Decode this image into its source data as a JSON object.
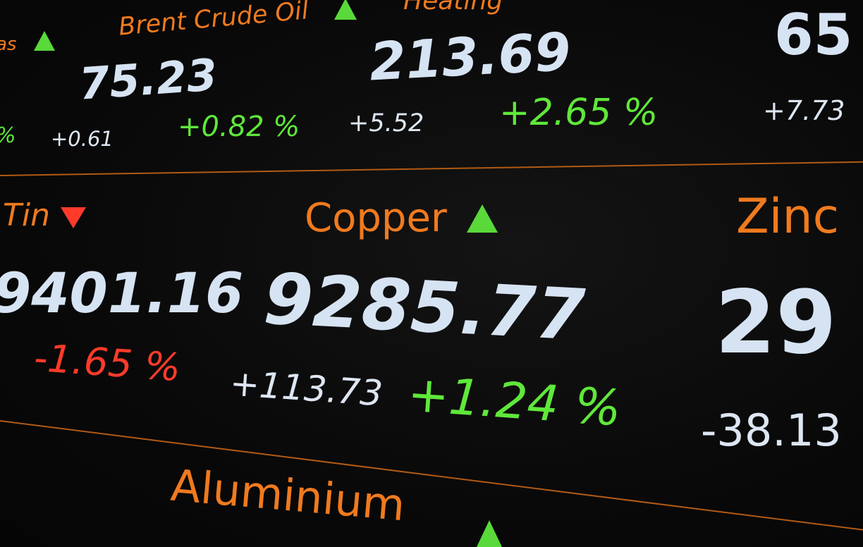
{
  "colors": {
    "background": "#070707",
    "name": "#f07a1e",
    "price": "#d6e3f3",
    "up": "#5fe83a",
    "down": "#ff3b2a",
    "separator": "#b25a14"
  },
  "row1": {
    "left_name_fragment": "as",
    "left_pct_fragment": "%",
    "brent": {
      "name": "Brent Crude Oil",
      "price": "75.23",
      "change": "+0.61",
      "change_pct": "+0.82 %",
      "direction": "up"
    },
    "heating": {
      "name": "Heating",
      "price": "213.69",
      "change": "+5.52",
      "change_pct": "+2.65 %",
      "direction": "up"
    },
    "right": {
      "price": "65",
      "change": "+7.73"
    }
  },
  "row2": {
    "tin": {
      "name": "Tin",
      "price": "9401.16",
      "change_pct": "-1.65 %",
      "direction": "down"
    },
    "copper": {
      "name": "Copper",
      "price": "9285.77",
      "change": "+113.73",
      "change_pct": "+1.24 %",
      "direction": "up"
    },
    "zinc": {
      "name": "Zinc",
      "price": "29",
      "change": "-38.13"
    }
  },
  "row3": {
    "aluminium": {
      "name": "Aluminium",
      "direction": "up"
    }
  }
}
